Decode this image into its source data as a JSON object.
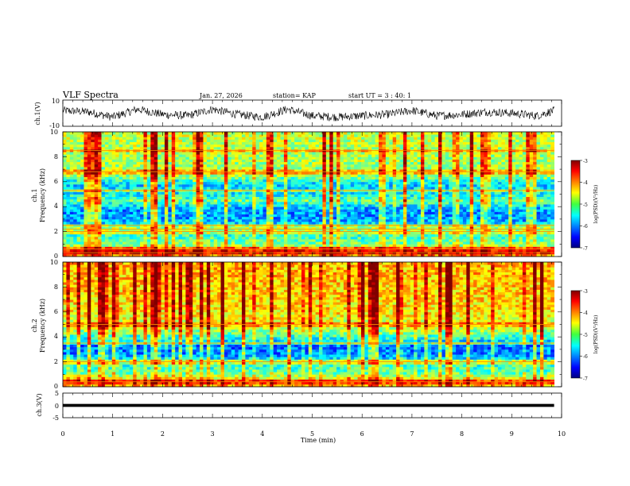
{
  "header": {
    "title": "VLF Spectra",
    "date": "Jan. 27, 2026",
    "station": "station= KAP",
    "start": "start  UT =   3 : 40: 1"
  },
  "chart_data": [
    {
      "type": "line",
      "panel": "ch1-waveform",
      "ylabel": "ch.1(V)",
      "ylim": [
        -10,
        10
      ],
      "yticks": [
        "10",
        "-10"
      ],
      "xlim": [
        0,
        10
      ],
      "x_extent": [
        0,
        9.85
      ],
      "trend_x": [
        0,
        0.5,
        1.0,
        1.5,
        2.0,
        2.5,
        3.0,
        3.5,
        4.0,
        4.5,
        5.0,
        5.5,
        6.0,
        6.5,
        7.0,
        7.5,
        8.0,
        8.5,
        9.0,
        9.5,
        9.85
      ],
      "trend_y": [
        2,
        1,
        -3,
        3,
        -1,
        -2,
        3,
        -1,
        -3,
        3,
        -2,
        -3,
        -2,
        -1,
        2,
        -2,
        -1,
        1,
        0,
        -2,
        2
      ],
      "noise_amplitude": 4
    },
    {
      "type": "heatmap",
      "panel": "ch1-spectrogram",
      "ylabel": "ch.1\nFrequency (kHz)",
      "ylabel_line1": "ch.1",
      "ylabel_line2": "Frequency (kHz)",
      "xlim": [
        0,
        10
      ],
      "x_extent": [
        0,
        9.85
      ],
      "ylim": [
        0,
        10
      ],
      "yticks": [
        "0",
        "2",
        "4",
        "6",
        "8",
        "10"
      ],
      "colorbar": {
        "label": "log(PSD)(V²/Hz)",
        "range": [
          -7,
          -3
        ],
        "ticks": [
          "-3",
          "-4",
          "-5",
          "-6",
          "-7"
        ],
        "colormap": "jet"
      },
      "background_profile": [
        {
          "f": 0.0,
          "v": -4.0
        },
        {
          "f": 0.4,
          "v": -4.0
        },
        {
          "f": 1.0,
          "v": -5.0
        },
        {
          "f": 1.8,
          "v": -5.3
        },
        {
          "f": 2.4,
          "v": -5.4
        },
        {
          "f": 3.0,
          "v": -5.9
        },
        {
          "f": 3.8,
          "v": -5.9
        },
        {
          "f": 4.5,
          "v": -5.1
        },
        {
          "f": 5.0,
          "v": -5.5
        },
        {
          "f": 5.8,
          "v": -5.7
        },
        {
          "f": 6.5,
          "v": -4.9
        },
        {
          "f": 10.0,
          "v": -4.7
        }
      ],
      "line_frequencies_khz": [
        0.3,
        0.6,
        2.0,
        2.2,
        2.5,
        5.3,
        6.8,
        8.5
      ],
      "impulse_rate": 0.28
    },
    {
      "type": "heatmap",
      "panel": "ch2-spectrogram",
      "ylabel_line1": "ch.2",
      "ylabel_line2": "Frequency (kHz)",
      "xlim": [
        0,
        10
      ],
      "x_extent": [
        0,
        9.85
      ],
      "ylim": [
        0,
        10
      ],
      "yticks": [
        "0",
        "2",
        "4",
        "6",
        "8",
        "10"
      ],
      "colorbar": {
        "label": "log(PSD)(V²/Hz)",
        "range": [
          -7,
          -3
        ],
        "ticks": [
          "-3",
          "-4",
          "-5",
          "-6",
          "-7"
        ],
        "colormap": "jet"
      },
      "background_profile": [
        {
          "f": 0.0,
          "v": -4.2
        },
        {
          "f": 0.6,
          "v": -4.4
        },
        {
          "f": 1.2,
          "v": -5.2
        },
        {
          "f": 2.0,
          "v": -5.3
        },
        {
          "f": 2.6,
          "v": -6.0
        },
        {
          "f": 3.3,
          "v": -6.0
        },
        {
          "f": 3.8,
          "v": -5.5
        },
        {
          "f": 4.6,
          "v": -4.8
        },
        {
          "f": 6.0,
          "v": -4.4
        },
        {
          "f": 8.0,
          "v": -4.3
        },
        {
          "f": 10.0,
          "v": -4.2
        }
      ],
      "line_frequencies_khz": [
        0.4,
        2.0,
        3.5,
        5.0
      ],
      "impulse_rate": 0.35
    },
    {
      "type": "line",
      "panel": "ch3-waveform",
      "ylabel": "ch.3(V)",
      "ylim": [
        -5,
        5
      ],
      "yticks": [
        "5",
        "0",
        "-5"
      ],
      "xlim": [
        0,
        10
      ],
      "x_extent": [
        0,
        9.85
      ],
      "level": 0,
      "band_halfwidth": 0.6
    }
  ],
  "xaxis": {
    "label": "Time (min)",
    "ticks": [
      "0",
      "1",
      "2",
      "3",
      "4",
      "5",
      "6",
      "7",
      "8",
      "9",
      "10"
    ]
  }
}
